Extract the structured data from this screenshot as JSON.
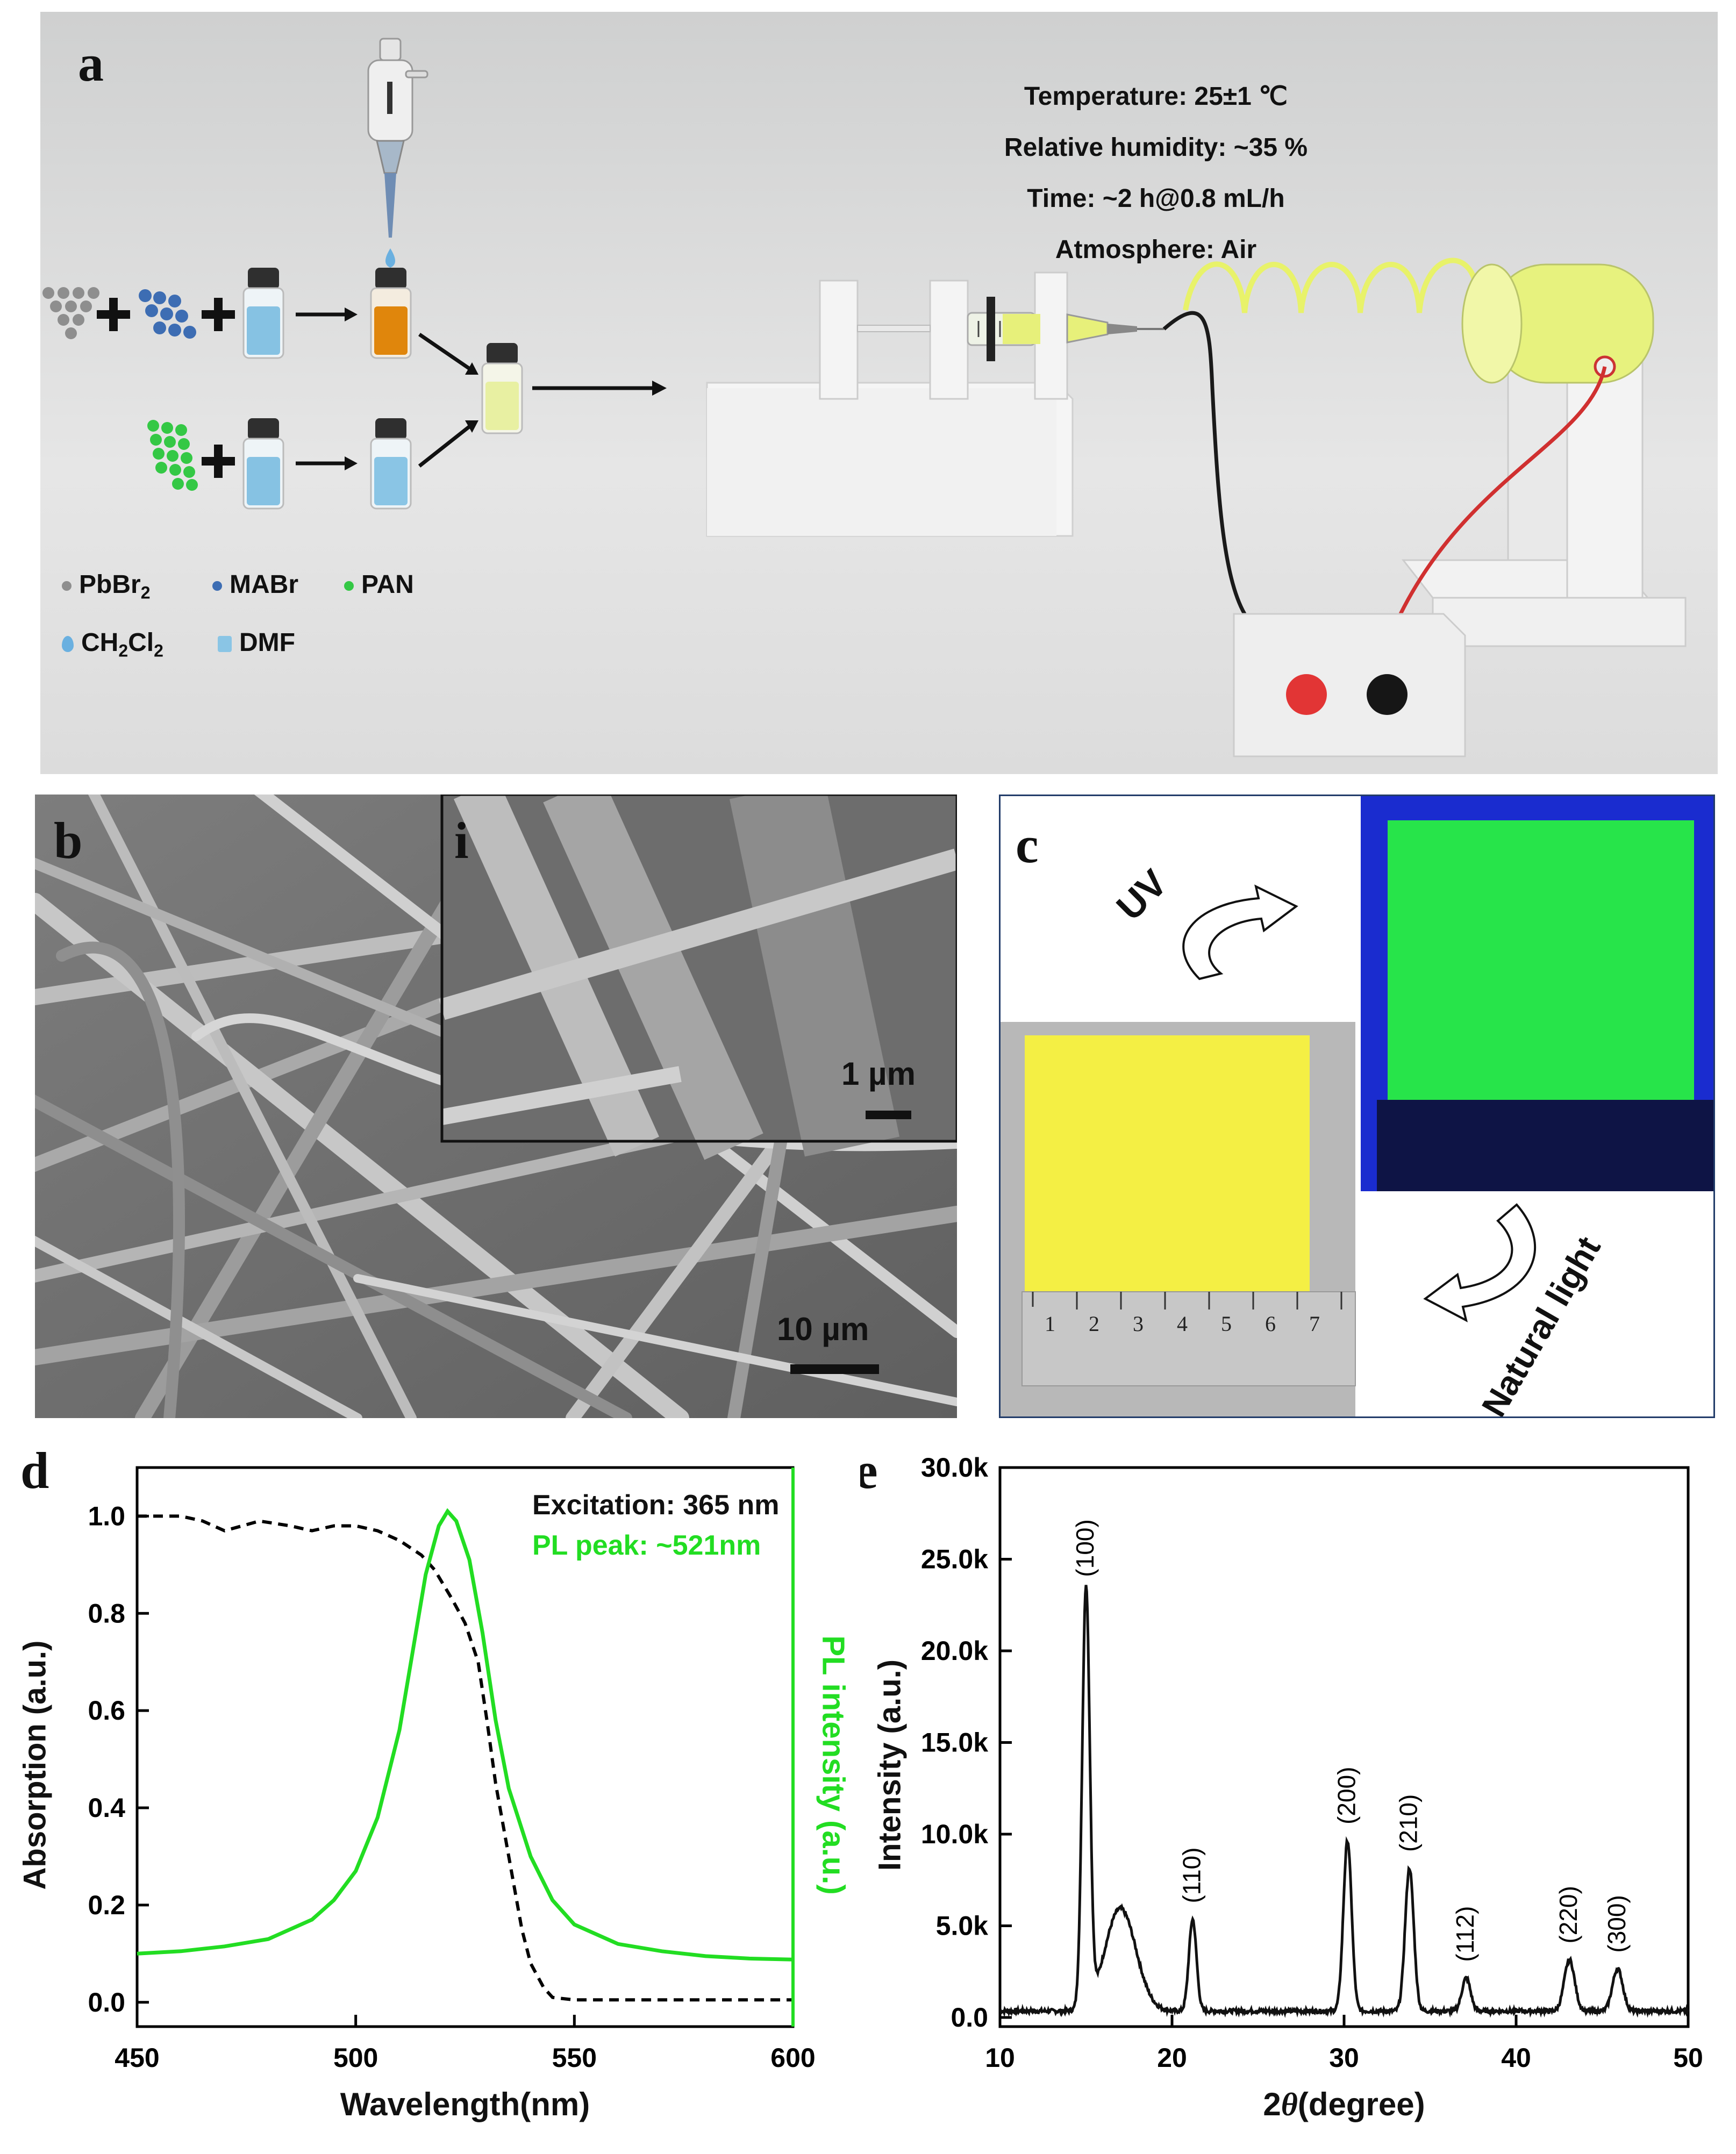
{
  "panel_a": {
    "label": "a",
    "conditions": [
      "Temperature: 25±1 ℃",
      "Relative humidity: ~35 %",
      "Time: ~2 h@0.8 mL/h",
      "Atmosphere: Air"
    ],
    "legend": {
      "pbbr2": "PbBr",
      "pbbr2_sub": "2",
      "mabr": "MABr",
      "pan": "PAN",
      "ch2cl2_a": "CH",
      "ch2cl2_b": "2",
      "ch2cl2_c": "Cl",
      "ch2cl2_d": "2",
      "dmf": "DMF"
    },
    "colors": {
      "pbbr2": "#8a8a8a",
      "mabr": "#3f6fb4",
      "pan": "#33cc44",
      "dmf": "#7fbfe3",
      "mixture": "#e08a10",
      "precursor": "#e6f0a0",
      "fiber": "#e8f26a"
    }
  },
  "panel_b": {
    "label": "b",
    "inset_label": "i",
    "scale_main": "10 µm",
    "scale_inset": "1 µm"
  },
  "panel_c": {
    "label": "c",
    "uv": "UV",
    "natural": "Natural light",
    "ruler_numbers": [
      "1",
      "2",
      "3",
      "4",
      "5",
      "6",
      "7"
    ],
    "colors": {
      "film_uv": "#22e040",
      "film_day": "#f3f04a",
      "uv_bg": "#1b2bd0"
    }
  },
  "panel_d": {
    "label": "d",
    "xlabel": "Wavelength(nm)",
    "ylabel_left": "Absorption (a.u.)",
    "ylabel_right": "PL intensity (a.u.)",
    "annotation_1": "Excitation: 365 nm",
    "annotation_2": "PL peak: ~521nm",
    "colors": {
      "absorption": "#000000",
      "pl": "#22dd22"
    }
  },
  "panel_e": {
    "label": "e",
    "xlabel_a": "2",
    "xlabel_theta": "θ",
    "xlabel_b": "(degree)",
    "ylabel": "Intensity (a.u.)"
  },
  "chart_data": [
    {
      "id": "absorption-pl",
      "type": "line",
      "xlim": [
        450,
        600
      ],
      "ylim": [
        -0.05,
        1.1
      ],
      "x_ticks": [
        450,
        500,
        550,
        600
      ],
      "y_ticks": [
        "0.0",
        "0.2",
        "0.4",
        "0.6",
        "0.8",
        "1.0"
      ],
      "series": [
        {
          "style": "dashed",
          "x": [
            450,
            460,
            465,
            470,
            478,
            485,
            490,
            495,
            500,
            505,
            510,
            515,
            518,
            520,
            522,
            525,
            528,
            530,
            532,
            535,
            538,
            540,
            543,
            545,
            550,
            560,
            580,
            600
          ],
          "y": [
            1.0,
            1.0,
            0.99,
            0.97,
            0.99,
            0.98,
            0.97,
            0.98,
            0.98,
            0.97,
            0.95,
            0.92,
            0.89,
            0.86,
            0.83,
            0.78,
            0.7,
            0.58,
            0.45,
            0.3,
            0.15,
            0.08,
            0.03,
            0.01,
            0.005,
            0.005,
            0.005,
            0.005
          ]
        },
        {
          "style": "solid",
          "x": [
            450,
            460,
            470,
            480,
            490,
            495,
            500,
            505,
            510,
            513,
            516,
            519,
            521,
            523,
            526,
            529,
            532,
            535,
            540,
            545,
            550,
            560,
            570,
            580,
            590,
            600
          ],
          "y": [
            0.1,
            0.105,
            0.115,
            0.13,
            0.17,
            0.21,
            0.27,
            0.38,
            0.56,
            0.72,
            0.88,
            0.98,
            1.01,
            0.99,
            0.91,
            0.76,
            0.58,
            0.44,
            0.3,
            0.21,
            0.16,
            0.12,
            0.105,
            0.095,
            0.09,
            0.088
          ]
        }
      ]
    },
    {
      "id": "xrd",
      "type": "line",
      "xlim": [
        10,
        50
      ],
      "ylim": [
        -500,
        30000
      ],
      "x_ticks": [
        10,
        20,
        30,
        40,
        50
      ],
      "y_ticks": [
        "0.0",
        "5.0k",
        "10.0k",
        "15.0k",
        "20.0k",
        "25.0k",
        "30.0k"
      ],
      "peaks": [
        {
          "label": "(100)",
          "x": 15.0,
          "y": 22800,
          "w": 0.22
        },
        {
          "label": "",
          "x": 17.0,
          "y": 5600,
          "w": 0.9
        },
        {
          "label": "(110)",
          "x": 21.2,
          "y": 5000,
          "w": 0.22
        },
        {
          "label": "(200)",
          "x": 30.2,
          "y": 9300,
          "w": 0.24
        },
        {
          "label": "(210)",
          "x": 33.8,
          "y": 7800,
          "w": 0.25
        },
        {
          "label": "(112)",
          "x": 37.1,
          "y": 1800,
          "w": 0.25
        },
        {
          "label": "(220)",
          "x": 43.1,
          "y": 2800,
          "w": 0.3
        },
        {
          "label": "(300)",
          "x": 45.9,
          "y": 2300,
          "w": 0.3
        }
      ],
      "baseline": 350
    }
  ]
}
